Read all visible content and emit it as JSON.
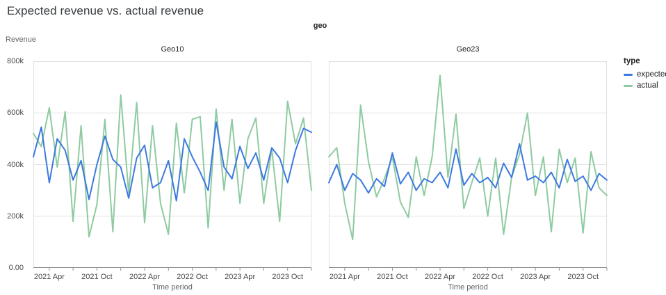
{
  "title": "Expected revenue vs. actual revenue",
  "facet_field_label": "geo",
  "y_axis_title": "Revenue",
  "legend": {
    "title": "type",
    "items": [
      {
        "label": "expected",
        "color": "#3d79e1"
      },
      {
        "label": "actual",
        "color": "#8ecba0"
      }
    ]
  },
  "colors": {
    "expected_blue": "#3d79e1",
    "actual_green": "#8ecba0",
    "grid": "#e4e4e4",
    "plot_border": "#e0e0e0",
    "axis_line": "#8e9196",
    "tick_label": "#46484b",
    "axis_title_text": "#5f6368"
  },
  "chart_data": {
    "type": "line",
    "title": "Expected revenue vs. actual revenue",
    "facet_field": "geo",
    "xlabel": "Time period",
    "ylabel": "Revenue",
    "y_unit": "k (thousands)",
    "ylim_k": [
      0,
      800
    ],
    "grid_y_k": [
      200,
      400,
      600
    ],
    "y_ticks": [
      {
        "value_k": 800,
        "label": "800k"
      },
      {
        "value_k": 600,
        "label": "600k"
      },
      {
        "value_k": 400,
        "label": "400k"
      },
      {
        "value_k": 200,
        "label": "200k"
      },
      {
        "value_k": 0,
        "label": "0.00"
      }
    ],
    "x_months": [
      "2021-02",
      "2021-03",
      "2021-04",
      "2021-05",
      "2021-06",
      "2021-07",
      "2021-08",
      "2021-09",
      "2021-10",
      "2021-11",
      "2021-12",
      "2022-01",
      "2022-02",
      "2022-03",
      "2022-04",
      "2022-05",
      "2022-06",
      "2022-07",
      "2022-08",
      "2022-09",
      "2022-10",
      "2022-11",
      "2022-12",
      "2023-01",
      "2023-02",
      "2023-03",
      "2023-04",
      "2023-05",
      "2023-06",
      "2023-07",
      "2023-08",
      "2023-09",
      "2023-10",
      "2023-11",
      "2023-12",
      "2024-01"
    ],
    "x_ticks": [
      {
        "i": 2,
        "label": "2021 Apr"
      },
      {
        "i": 5,
        "label": ""
      },
      {
        "i": 8,
        "label": "2021 Oct"
      },
      {
        "i": 11,
        "label": ""
      },
      {
        "i": 14,
        "label": "2022 Apr"
      },
      {
        "i": 17,
        "label": ""
      },
      {
        "i": 20,
        "label": "2022 Oct"
      },
      {
        "i": 23,
        "label": ""
      },
      {
        "i": 26,
        "label": "2023 Apr"
      },
      {
        "i": 29,
        "label": ""
      },
      {
        "i": 32,
        "label": "2023 Oct"
      },
      {
        "i": 35,
        "label": ""
      }
    ],
    "legend_position": "right",
    "grid": true,
    "facets": [
      {
        "name": "Geo10",
        "series": [
          {
            "name": "expected",
            "color": "#3d79e1",
            "values_k": [
              430,
              545,
              330,
              500,
              455,
              340,
              415,
              265,
              400,
              510,
              420,
              390,
              270,
              425,
              475,
              310,
              330,
              415,
              260,
              500,
              430,
              370,
              300,
              565,
              390,
              345,
              470,
              385,
              445,
              340,
              465,
              425,
              330,
              455,
              540,
              525
            ]
          },
          {
            "name": "actual",
            "color": "#8ecba0",
            "values_k": [
              520,
              470,
              620,
              390,
              605,
              180,
              550,
              120,
              245,
              575,
              140,
              670,
              290,
              640,
              175,
              550,
              250,
              130,
              560,
              290,
              575,
              585,
              155,
              615,
              300,
              575,
              250,
              500,
              580,
              250,
              460,
              180,
              645,
              480,
              580,
              300
            ]
          }
        ]
      },
      {
        "name": "Geo23",
        "series": [
          {
            "name": "expected",
            "color": "#3d79e1",
            "values_k": [
              330,
              400,
              300,
              365,
              340,
              290,
              345,
              315,
              445,
              325,
              370,
              300,
              345,
              330,
              370,
              310,
              460,
              320,
              365,
              330,
              350,
              310,
              405,
              350,
              480,
              340,
              355,
              330,
              370,
              310,
              420,
              335,
              355,
              300,
              365,
              340
            ]
          },
          {
            "name": "actual",
            "color": "#8ecba0",
            "values_k": [
              430,
              465,
              250,
              110,
              630,
              410,
              275,
              345,
              430,
              255,
              195,
              430,
              280,
              430,
              745,
              350,
              595,
              230,
              330,
              425,
              200,
              425,
              130,
              350,
              440,
              600,
              280,
              430,
              140,
              460,
              330,
              425,
              135,
              450,
              310,
              280
            ]
          }
        ]
      }
    ]
  }
}
